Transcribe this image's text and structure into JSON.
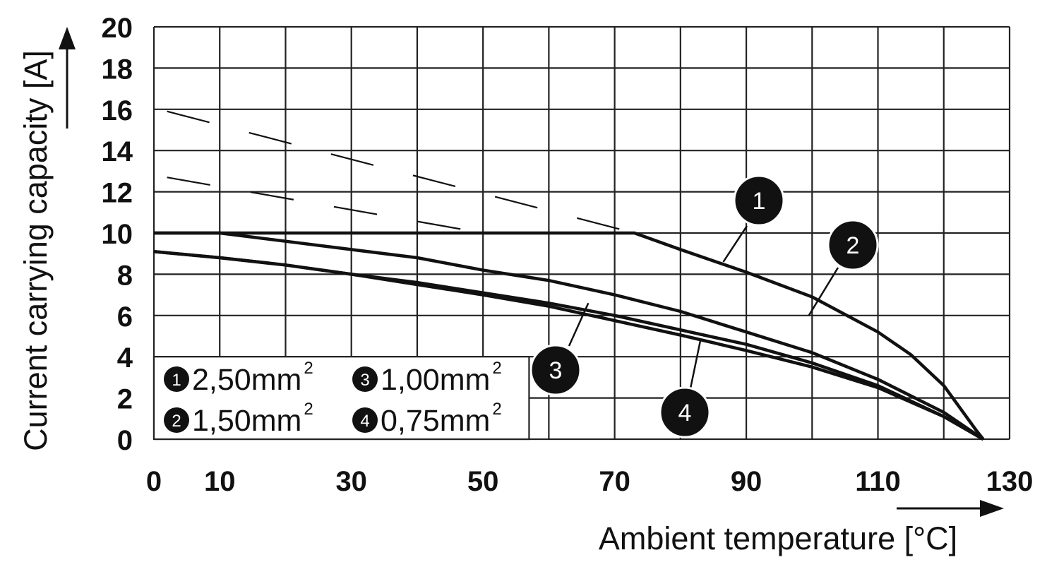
{
  "chart_data": {
    "type": "line",
    "xlabel": "Ambient temperature [°C]",
    "ylabel": "Current carrying capacity [A]",
    "xlim": [
      0,
      130
    ],
    "ylim": [
      0,
      20
    ],
    "x_ticks": [
      0,
      10,
      30,
      50,
      70,
      90,
      110,
      130
    ],
    "y_ticks": [
      0,
      2,
      4,
      6,
      8,
      10,
      12,
      14,
      16,
      18,
      20
    ],
    "grid": true,
    "series": [
      {
        "name": "2,50mm",
        "label": "1",
        "style": "solid",
        "points": [
          [
            0,
            10
          ],
          [
            73,
            10
          ],
          [
            80,
            9.2
          ],
          [
            90,
            8.1
          ],
          [
            100,
            6.9
          ],
          [
            110,
            5.2
          ],
          [
            115,
            4.1
          ],
          [
            120,
            2.6
          ],
          [
            125,
            0.4
          ],
          [
            126,
            0
          ]
        ]
      },
      {
        "name": "1,50mm",
        "label": "2",
        "style": "solid",
        "points": [
          [
            0,
            10
          ],
          [
            10,
            10
          ],
          [
            20,
            9.6
          ],
          [
            30,
            9.2
          ],
          [
            40,
            8.8
          ],
          [
            50,
            8.2
          ],
          [
            60,
            7.7
          ],
          [
            70,
            7.0
          ],
          [
            80,
            6.2
          ],
          [
            90,
            5.2
          ],
          [
            100,
            4.2
          ],
          [
            110,
            2.9
          ],
          [
            120,
            1.3
          ],
          [
            126,
            0
          ]
        ]
      },
      {
        "name": "1,00mm",
        "label": "3",
        "style": "solid",
        "points": [
          [
            0,
            9.1
          ],
          [
            10,
            8.8
          ],
          [
            20,
            8.45
          ],
          [
            30,
            8.0
          ],
          [
            40,
            7.6
          ],
          [
            50,
            7.1
          ],
          [
            60,
            6.6
          ],
          [
            70,
            6.0
          ],
          [
            80,
            5.3
          ],
          [
            90,
            4.6
          ],
          [
            100,
            3.7
          ],
          [
            110,
            2.6
          ],
          [
            120,
            1.1
          ],
          [
            126,
            0
          ]
        ]
      },
      {
        "name": "0,75mm",
        "label": "4",
        "style": "solid",
        "points": [
          [
            0,
            9.1
          ],
          [
            10,
            8.8
          ],
          [
            20,
            8.45
          ],
          [
            30,
            8.0
          ],
          [
            40,
            7.5
          ],
          [
            50,
            7.0
          ],
          [
            60,
            6.45
          ],
          [
            70,
            5.75
          ],
          [
            80,
            5.05
          ],
          [
            90,
            4.3
          ],
          [
            100,
            3.5
          ],
          [
            110,
            2.5
          ],
          [
            120,
            1.1
          ],
          [
            126,
            0
          ]
        ]
      },
      {
        "style": "dashed",
        "points": [
          [
            2,
            15.9
          ],
          [
            73,
            10
          ]
        ]
      },
      {
        "style": "dashed",
        "points": [
          [
            2,
            12.7
          ],
          [
            50,
            10
          ]
        ]
      }
    ],
    "legend": {
      "placement": "bottom-left",
      "unit_superscript": "2",
      "entries": [
        {
          "label": "1",
          "text": "2,50mm"
        },
        {
          "label": "3",
          "text": "1,00mm"
        },
        {
          "label": "2",
          "text": "1,50mm"
        },
        {
          "label": "4",
          "text": "0,75mm"
        }
      ]
    },
    "callouts": [
      {
        "label": "1",
        "series": 0
      },
      {
        "label": "2",
        "series": 1
      },
      {
        "label": "3",
        "series": 2
      },
      {
        "label": "4",
        "series": 3
      }
    ]
  }
}
